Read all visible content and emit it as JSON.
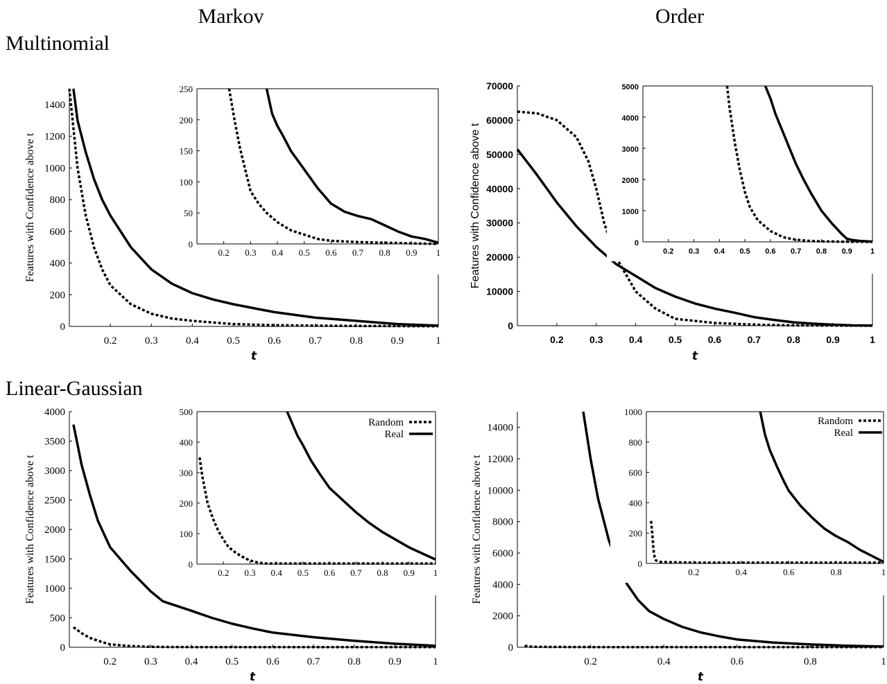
{
  "headers": {
    "col_markov": "Markov",
    "col_order": "Order",
    "row_multinomial": "Multinomial",
    "row_linear_gaussian": "Linear-Gaussian"
  },
  "chart_data": [
    {
      "id": "mult_markov",
      "type": "line",
      "xlabel": "t",
      "ylabel": "Features with Confidence above t",
      "xlim": [
        0.1,
        1.0
      ],
      "ylim": [
        0,
        1500
      ],
      "xticks": [
        "0.2",
        "0.3",
        "0.4",
        "0.5",
        "0.6",
        "0.7",
        "0.8",
        "0.9",
        "1"
      ],
      "yticks": [
        "0",
        "200",
        "400",
        "600",
        "800",
        "1000",
        "1200",
        "1400"
      ],
      "series": [
        {
          "key": "random",
          "style": "dashed",
          "x": [
            0.1,
            0.12,
            0.14,
            0.16,
            0.18,
            0.2,
            0.25,
            0.3,
            0.35,
            0.4,
            0.5,
            0.6,
            0.7,
            0.8,
            0.9,
            1.0
          ],
          "y": [
            1500,
            1000,
            700,
            500,
            360,
            260,
            140,
            80,
            50,
            35,
            15,
            8,
            5,
            3,
            2,
            1
          ]
        },
        {
          "key": "real",
          "style": "solid",
          "x": [
            0.11,
            0.12,
            0.14,
            0.16,
            0.18,
            0.2,
            0.25,
            0.3,
            0.35,
            0.4,
            0.45,
            0.5,
            0.6,
            0.7,
            0.8,
            0.9,
            1.0
          ],
          "y": [
            1500,
            1300,
            1100,
            930,
            800,
            700,
            500,
            360,
            270,
            210,
            170,
            140,
            90,
            55,
            35,
            15,
            5
          ]
        }
      ],
      "inset": {
        "xlim": [
          0.1,
          1.0
        ],
        "ylim": [
          0,
          250
        ],
        "xticks": [
          "0.2",
          "0.3",
          "0.4",
          "0.5",
          "0.6",
          "0.7",
          "0.8",
          "0.9",
          "1"
        ],
        "yticks": [
          "0",
          "50",
          "100",
          "150",
          "200",
          "250"
        ],
        "series": [
          {
            "key": "random",
            "style": "dashed",
            "x": [
              0.22,
              0.24,
              0.26,
              0.28,
              0.3,
              0.33,
              0.36,
              0.4,
              0.45,
              0.5,
              0.55,
              0.6,
              0.7,
              0.8,
              0.9,
              1.0
            ],
            "y": [
              250,
              200,
              155,
              120,
              85,
              65,
              50,
              35,
              22,
              15,
              8,
              5,
              3,
              2,
              1,
              0
            ]
          },
          {
            "key": "real",
            "style": "solid",
            "x": [
              0.36,
              0.38,
              0.4,
              0.42,
              0.45,
              0.5,
              0.55,
              0.6,
              0.65,
              0.7,
              0.75,
              0.8,
              0.85,
              0.9,
              0.95,
              1.0
            ],
            "y": [
              250,
              210,
              190,
              175,
              150,
              120,
              90,
              65,
              52,
              45,
              40,
              30,
              20,
              12,
              8,
              2
            ]
          }
        ]
      }
    },
    {
      "id": "mult_order",
      "type": "line",
      "xlabel": "t",
      "ylabel": "Features with Confidence above t",
      "xlim": [
        0.1,
        1.0
      ],
      "ylim": [
        0,
        70000
      ],
      "xticks": [
        "0.2",
        "0.3",
        "0.4",
        "0.5",
        "0.6",
        "0.7",
        "0.8",
        "0.9",
        "1"
      ],
      "yticks": [
        "0",
        "10000",
        "20000",
        "30000",
        "40000",
        "50000",
        "60000",
        "70000"
      ],
      "series": [
        {
          "key": "random",
          "style": "dashed",
          "x": [
            0.1,
            0.15,
            0.2,
            0.25,
            0.28,
            0.3,
            0.32,
            0.35,
            0.4,
            0.45,
            0.5,
            0.6,
            0.7,
            0.8,
            0.9,
            1.0
          ],
          "y": [
            62500,
            62000,
            60000,
            55000,
            48000,
            40000,
            30000,
            20000,
            10000,
            5000,
            2000,
            800,
            300,
            100,
            50,
            10
          ]
        },
        {
          "key": "real",
          "style": "solid",
          "x": [
            0.1,
            0.15,
            0.2,
            0.25,
            0.3,
            0.35,
            0.4,
            0.45,
            0.5,
            0.55,
            0.6,
            0.65,
            0.7,
            0.75,
            0.8,
            0.85,
            0.9,
            0.95,
            1.0
          ],
          "y": [
            51500,
            44000,
            36000,
            29000,
            23000,
            18000,
            14500,
            11000,
            8500,
            6500,
            5000,
            3800,
            2500,
            1700,
            1000,
            600,
            300,
            100,
            50
          ]
        }
      ],
      "inset": {
        "xlim": [
          0.1,
          1.0
        ],
        "ylim": [
          0,
          5000
        ],
        "xticks": [
          "0.2",
          "0.3",
          "0.4",
          "0.5",
          "0.6",
          "0.7",
          "0.8",
          "0.9",
          "1"
        ],
        "yticks": [
          "0",
          "1000",
          "2000",
          "3000",
          "4000",
          "5000"
        ],
        "series": [
          {
            "key": "random",
            "style": "dashed",
            "x": [
              0.43,
              0.44,
              0.46,
              0.48,
              0.5,
              0.52,
              0.55,
              0.6,
              0.65,
              0.7,
              0.75,
              0.8,
              0.9,
              1.0
            ],
            "y": [
              5000,
              4300,
              3200,
              2300,
              1600,
              1100,
              700,
              350,
              150,
              70,
              30,
              15,
              5,
              0
            ]
          },
          {
            "key": "real",
            "style": "solid",
            "x": [
              0.58,
              0.6,
              0.62,
              0.65,
              0.68,
              0.7,
              0.73,
              0.76,
              0.8,
              0.84,
              0.88,
              0.9,
              0.92,
              0.95,
              1.0
            ],
            "y": [
              5000,
              4600,
              4100,
              3500,
              2900,
              2500,
              2000,
              1550,
              1000,
              600,
              250,
              100,
              60,
              30,
              10
            ]
          }
        ]
      }
    },
    {
      "id": "lg_markov",
      "type": "line",
      "xlabel": "t",
      "ylabel": "Features with Confidence above t",
      "xlim": [
        0.1,
        1.0
      ],
      "ylim": [
        0,
        4000
      ],
      "xticks": [
        "0.2",
        "0.3",
        "0.4",
        "0.5",
        "0.6",
        "0.7",
        "0.8",
        "0.9",
        "1"
      ],
      "yticks": [
        "0",
        "500",
        "1000",
        "1500",
        "2000",
        "2500",
        "3000",
        "3500",
        "4000"
      ],
      "series": [
        {
          "key": "random",
          "style": "dashed",
          "x": [
            0.11,
            0.13,
            0.15,
            0.18,
            0.2,
            0.25,
            0.3,
            0.35,
            0.4,
            0.5,
            0.6,
            0.7,
            0.8,
            0.9,
            1.0
          ],
          "y": [
            340,
            240,
            160,
            90,
            50,
            20,
            8,
            5,
            4,
            3,
            3,
            3,
            3,
            3,
            3
          ]
        },
        {
          "key": "real",
          "style": "solid",
          "x": [
            0.11,
            0.12,
            0.13,
            0.15,
            0.17,
            0.2,
            0.25,
            0.3,
            0.33,
            0.4,
            0.45,
            0.5,
            0.55,
            0.6,
            0.7,
            0.8,
            0.9,
            1.0
          ],
          "y": [
            3780,
            3450,
            3100,
            2600,
            2150,
            1700,
            1300,
            950,
            780,
            620,
            500,
            400,
            320,
            250,
            170,
            110,
            60,
            25
          ]
        }
      ],
      "inset": {
        "xlim": [
          0.1,
          1.0
        ],
        "ylim": [
          0,
          500
        ],
        "xticks": [
          "0.2",
          "0.3",
          "0.4",
          "0.5",
          "0.6",
          "0.7",
          "0.8",
          "0.9",
          "1"
        ],
        "yticks": [
          "0",
          "100",
          "200",
          "300",
          "400",
          "500"
        ],
        "legend": {
          "random": "Random",
          "real": "Real"
        },
        "series": [
          {
            "key": "random",
            "style": "dashed",
            "x": [
              0.11,
              0.12,
              0.14,
              0.16,
              0.18,
              0.2,
              0.22,
              0.25,
              0.28,
              0.3,
              0.33,
              0.36,
              0.4,
              0.5,
              0.6,
              0.7,
              0.8,
              0.9,
              1.0
            ],
            "y": [
              350,
              290,
              200,
              150,
              110,
              80,
              55,
              35,
              20,
              12,
              5,
              2,
              2,
              2,
              2,
              2,
              2,
              2,
              2
            ]
          },
          {
            "key": "real",
            "style": "solid",
            "x": [
              0.44,
              0.46,
              0.48,
              0.5,
              0.53,
              0.56,
              0.6,
              0.65,
              0.7,
              0.75,
              0.8,
              0.85,
              0.9,
              0.95,
              1.0
            ],
            "y": [
              500,
              460,
              420,
              390,
              340,
              300,
              250,
              210,
              170,
              135,
              105,
              80,
              55,
              35,
              15
            ]
          }
        ]
      }
    },
    {
      "id": "lg_order",
      "type": "line",
      "xlabel": "t",
      "ylabel": "Features with Confidence above t",
      "xlim": [
        0.0,
        1.0
      ],
      "ylim": [
        0,
        15000
      ],
      "xticks": [
        "0.2",
        "0.4",
        "0.6",
        "0.8",
        "1"
      ],
      "yticks": [
        "0",
        "2000",
        "4000",
        "6000",
        "8000",
        "10000",
        "12000",
        "14000"
      ],
      "series": [
        {
          "key": "random",
          "style": "dashed",
          "x": [
            0.02,
            0.03,
            0.05,
            0.1,
            0.2,
            0.4,
            0.6,
            0.8,
            1.0
          ],
          "y": [
            100,
            50,
            30,
            20,
            15,
            15,
            15,
            15,
            15
          ]
        },
        {
          "key": "real",
          "style": "solid",
          "x": [
            0.18,
            0.2,
            0.22,
            0.25,
            0.28,
            0.3,
            0.33,
            0.36,
            0.4,
            0.45,
            0.5,
            0.55,
            0.6,
            0.7,
            0.8,
            0.9,
            1.0
          ],
          "y": [
            15000,
            12000,
            9500,
            6800,
            4900,
            4000,
            3000,
            2300,
            1800,
            1300,
            950,
            700,
            500,
            300,
            180,
            100,
            50
          ]
        }
      ],
      "inset": {
        "xlim": [
          0.0,
          1.0
        ],
        "ylim": [
          0,
          1000
        ],
        "xticks": [
          "0.2",
          "0.4",
          "0.6",
          "0.8",
          "1"
        ],
        "yticks": [
          "0",
          "200",
          "400",
          "600",
          "800",
          "1000"
        ],
        "legend": {
          "random": "Random",
          "real": "Real"
        },
        "series": [
          {
            "key": "random",
            "style": "dashed",
            "x": [
              0.02,
              0.025,
              0.03,
              0.035,
              0.04,
              0.06,
              0.1,
              0.2,
              0.4,
              0.6,
              0.8,
              1.0
            ],
            "y": [
              280,
              200,
              90,
              40,
              20,
              10,
              8,
              5,
              5,
              5,
              5,
              5
            ]
          },
          {
            "key": "real",
            "style": "solid",
            "x": [
              0.48,
              0.5,
              0.52,
              0.55,
              0.58,
              0.6,
              0.65,
              0.7,
              0.75,
              0.8,
              0.85,
              0.9,
              0.95,
              1.0
            ],
            "y": [
              1000,
              850,
              750,
              640,
              540,
              480,
              380,
              300,
              230,
              180,
              140,
              90,
              50,
              10
            ]
          }
        ]
      }
    }
  ]
}
